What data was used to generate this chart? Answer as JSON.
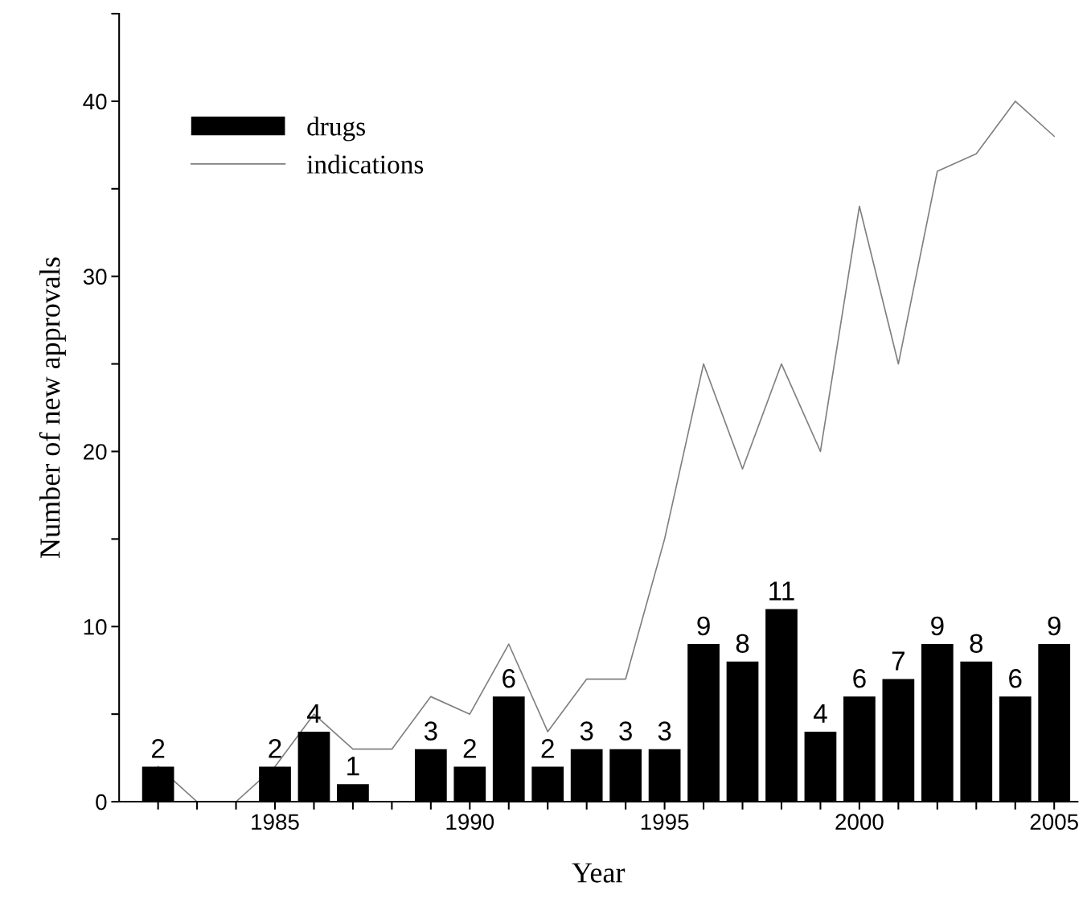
{
  "chart_data": {
    "type": "bar",
    "xlabel": "Year",
    "ylabel": "Number of new approvals",
    "x": [
      1982,
      1983,
      1984,
      1985,
      1986,
      1987,
      1988,
      1989,
      1990,
      1991,
      1992,
      1993,
      1994,
      1995,
      1996,
      1997,
      1998,
      1999,
      2000,
      2001,
      2002,
      2003,
      2004,
      2005
    ],
    "series": [
      {
        "name": "drugs",
        "color": "#000000",
        "values": [
          2,
          null,
          null,
          2,
          4,
          1,
          null,
          3,
          2,
          6,
          2,
          3,
          3,
          3,
          9,
          8,
          11,
          4,
          6,
          7,
          9,
          8,
          6,
          9
        ],
        "data_labels": true
      },
      {
        "name": "indications",
        "type": "line",
        "color": "#808080",
        "values": [
          2,
          0,
          0,
          2,
          5,
          3,
          3,
          6,
          5,
          9,
          4,
          7,
          7,
          15,
          25,
          19,
          25,
          20,
          34,
          25,
          36,
          37,
          40,
          38
        ]
      }
    ],
    "xlim": [
      1981,
      2005.6
    ],
    "xticks": [
      {
        "value": 1982,
        "label": null
      },
      {
        "value": 1983,
        "label": null
      },
      {
        "value": 1984,
        "label": null
      },
      1985,
      {
        "value": 1986,
        "label": null
      },
      {
        "value": 1987,
        "label": null
      },
      {
        "value": 1988,
        "label": null
      },
      {
        "value": 1989,
        "label": null
      },
      1990,
      {
        "value": 1991,
        "label": null
      },
      {
        "value": 1992,
        "label": null
      },
      {
        "value": 1993,
        "label": null
      },
      {
        "value": 1994,
        "label": null
      },
      1995,
      {
        "value": 1996,
        "label": null
      },
      {
        "value": 1997,
        "label": null
      },
      {
        "value": 1998,
        "label": null
      },
      {
        "value": 1999,
        "label": null
      },
      2000,
      {
        "value": 2001,
        "label": null
      },
      {
        "value": 2002,
        "label": null
      },
      {
        "value": 2003,
        "label": null
      },
      {
        "value": 2004,
        "label": null
      },
      2005
    ],
    "ylim": [
      0,
      45
    ],
    "yticks": [
      0,
      {
        "value": 5,
        "label": null
      },
      10,
      {
        "value": 15,
        "label": null
      },
      20,
      {
        "value": 25,
        "label": null
      },
      30,
      {
        "value": 35,
        "label": null
      },
      40,
      {
        "value": 45,
        "label": null
      }
    ],
    "legend": "top left",
    "grid": false,
    "line_style": "solid",
    "marker": "none"
  }
}
